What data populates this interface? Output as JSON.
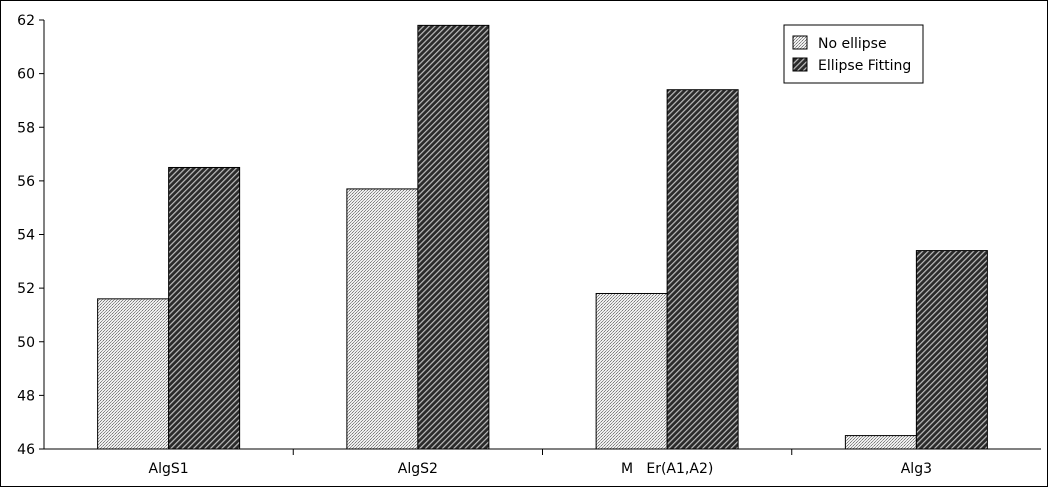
{
  "chart_data": {
    "type": "bar",
    "categories": [
      "AlgS1",
      "AlgS2",
      "M   Er(A1,A2)",
      "Alg3"
    ],
    "series": [
      {
        "name": "No ellipse",
        "values": [
          51.6,
          55.7,
          51.8,
          46.5
        ],
        "pattern": "light-dots"
      },
      {
        "name": "Ellipse Fitting",
        "values": [
          56.5,
          61.8,
          59.4,
          53.4
        ],
        "pattern": "dark-hatch"
      }
    ],
    "ylim": [
      46,
      62
    ],
    "yticks": [
      46,
      48,
      50,
      52,
      54,
      56,
      58,
      60,
      62
    ],
    "ytick_labels": [
      "46",
      "48",
      "50",
      "52",
      "54",
      "56",
      "58",
      "60",
      "62"
    ],
    "legend_position": "top-right",
    "grid": false,
    "colors": {
      "light": "#d8d8d8",
      "dark": "#3a3a3a",
      "axis": "#000000"
    }
  }
}
